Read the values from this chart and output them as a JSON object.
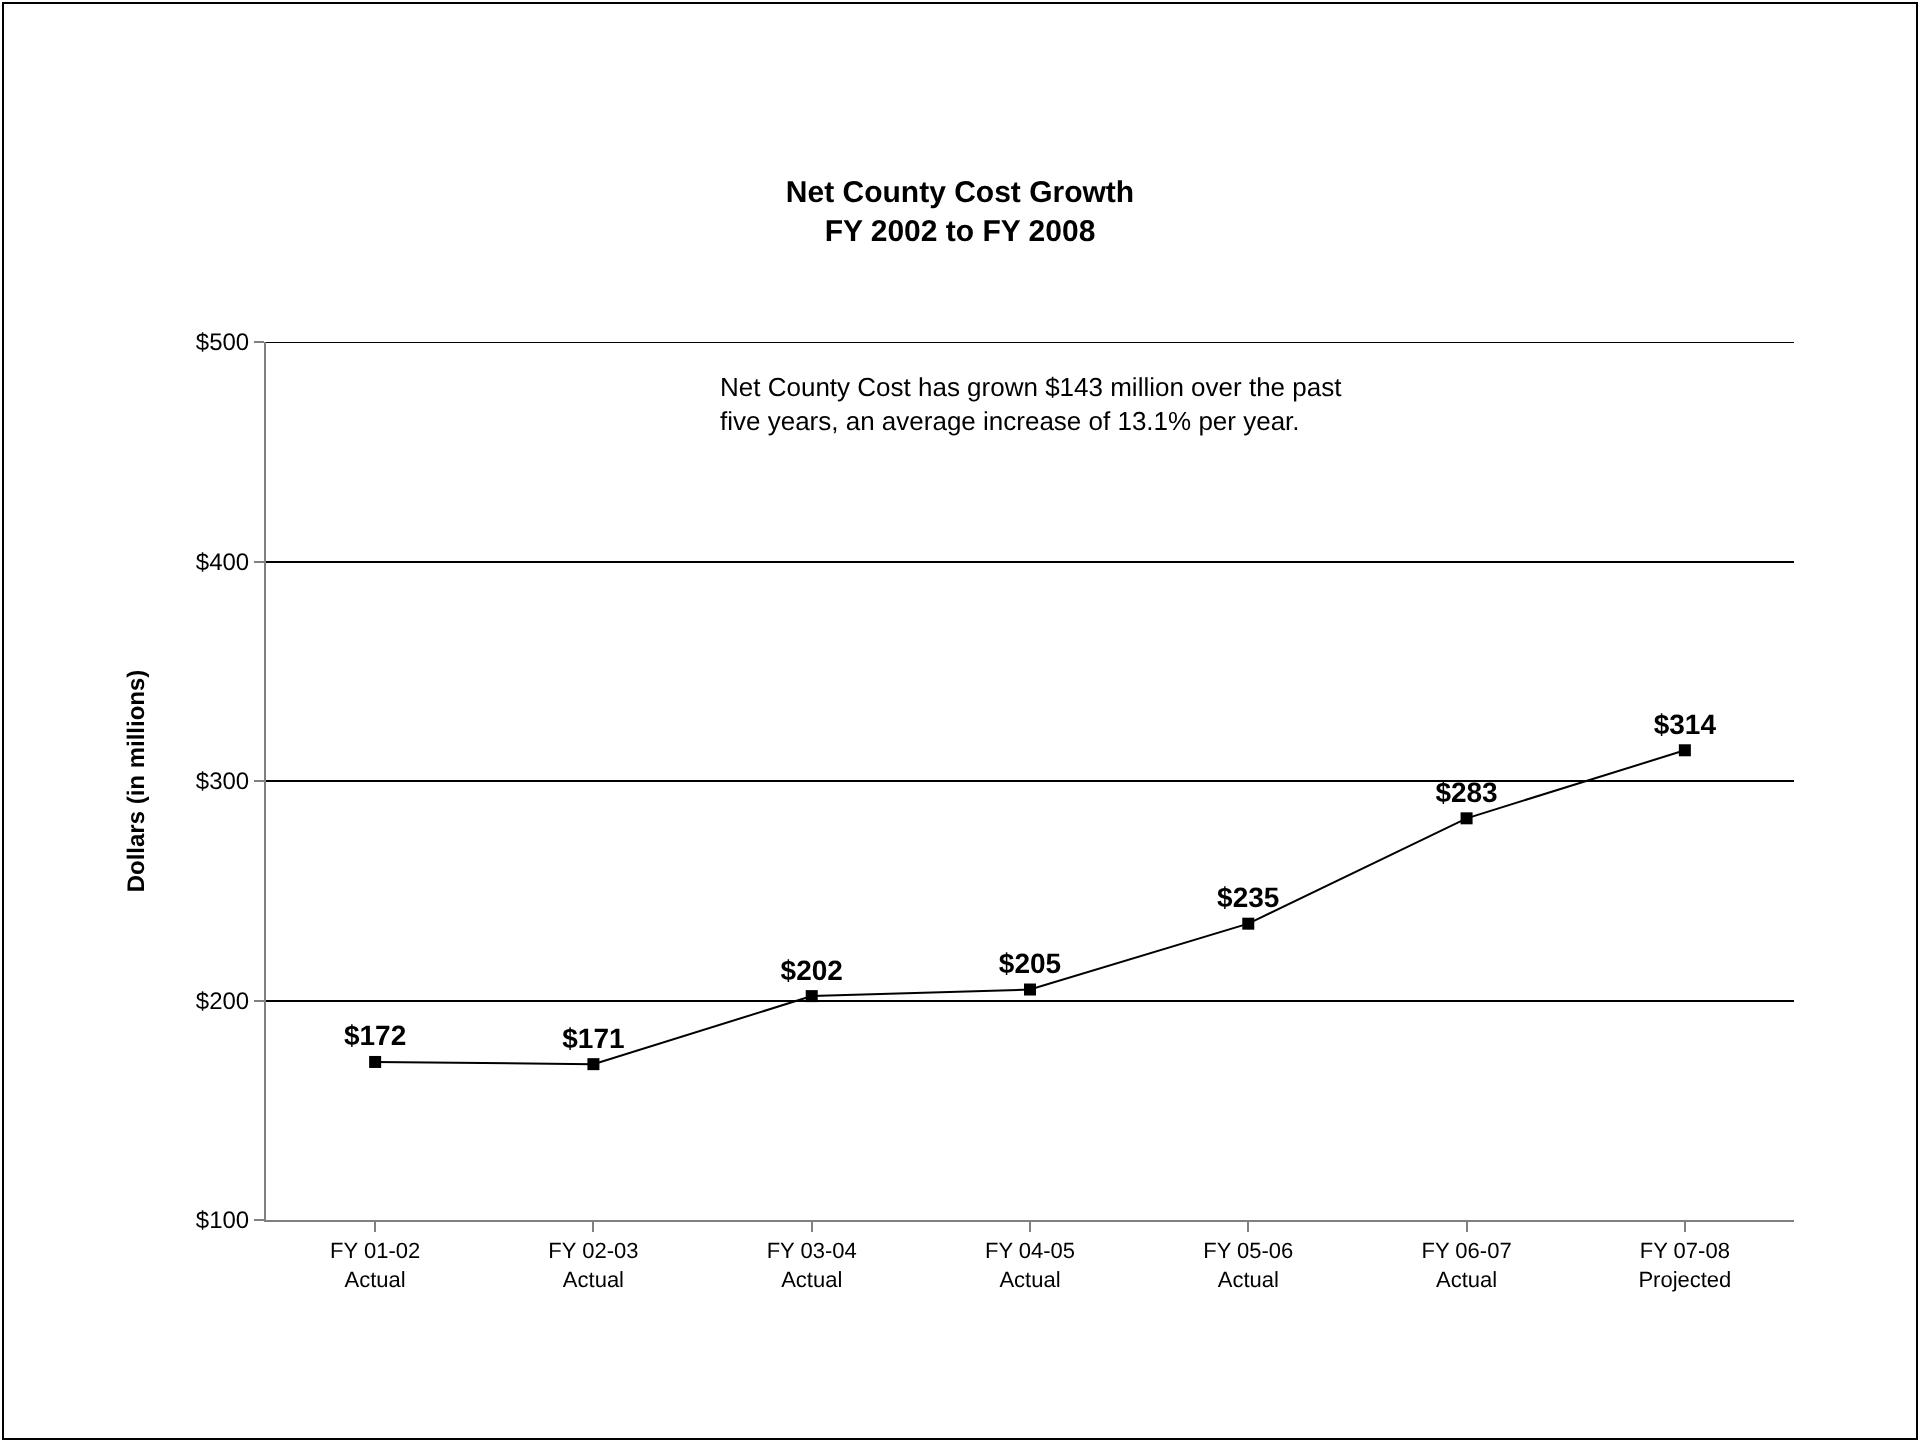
{
  "chart_data": {
    "type": "line",
    "title": "Net County Cost Growth\nFY 2002 to FY 2008",
    "ylabel": "Dollars (in millions)",
    "categories": [
      "FY 01-02\nActual",
      "FY 02-03\nActual",
      "FY 03-04\nActual",
      "FY 04-05\nActual",
      "FY 05-06\nActual",
      "FY 06-07\nActual",
      "FY 07-08\nProjected"
    ],
    "series": [
      {
        "color": "#000000",
        "values": [
          172,
          171,
          202,
          205,
          235,
          283,
          314
        ],
        "value_labels": [
          "$172",
          "$171",
          "$202",
          "$205",
          "$235",
          "$283",
          "$314"
        ]
      }
    ],
    "ylim": [
      100,
      500
    ],
    "yticks": [
      {
        "value": 100,
        "label": "$100"
      },
      {
        "value": 200,
        "label": "$200"
      },
      {
        "value": 300,
        "label": "$300"
      },
      {
        "value": 400,
        "label": "$400"
      },
      {
        "value": 500,
        "label": "$500"
      }
    ],
    "annotations": [
      "Net County Cost has grown $143 million over the past\nfive years, an average increase of 13.1% per year."
    ],
    "grid": "y",
    "marker": "square",
    "line_style": "solid"
  }
}
